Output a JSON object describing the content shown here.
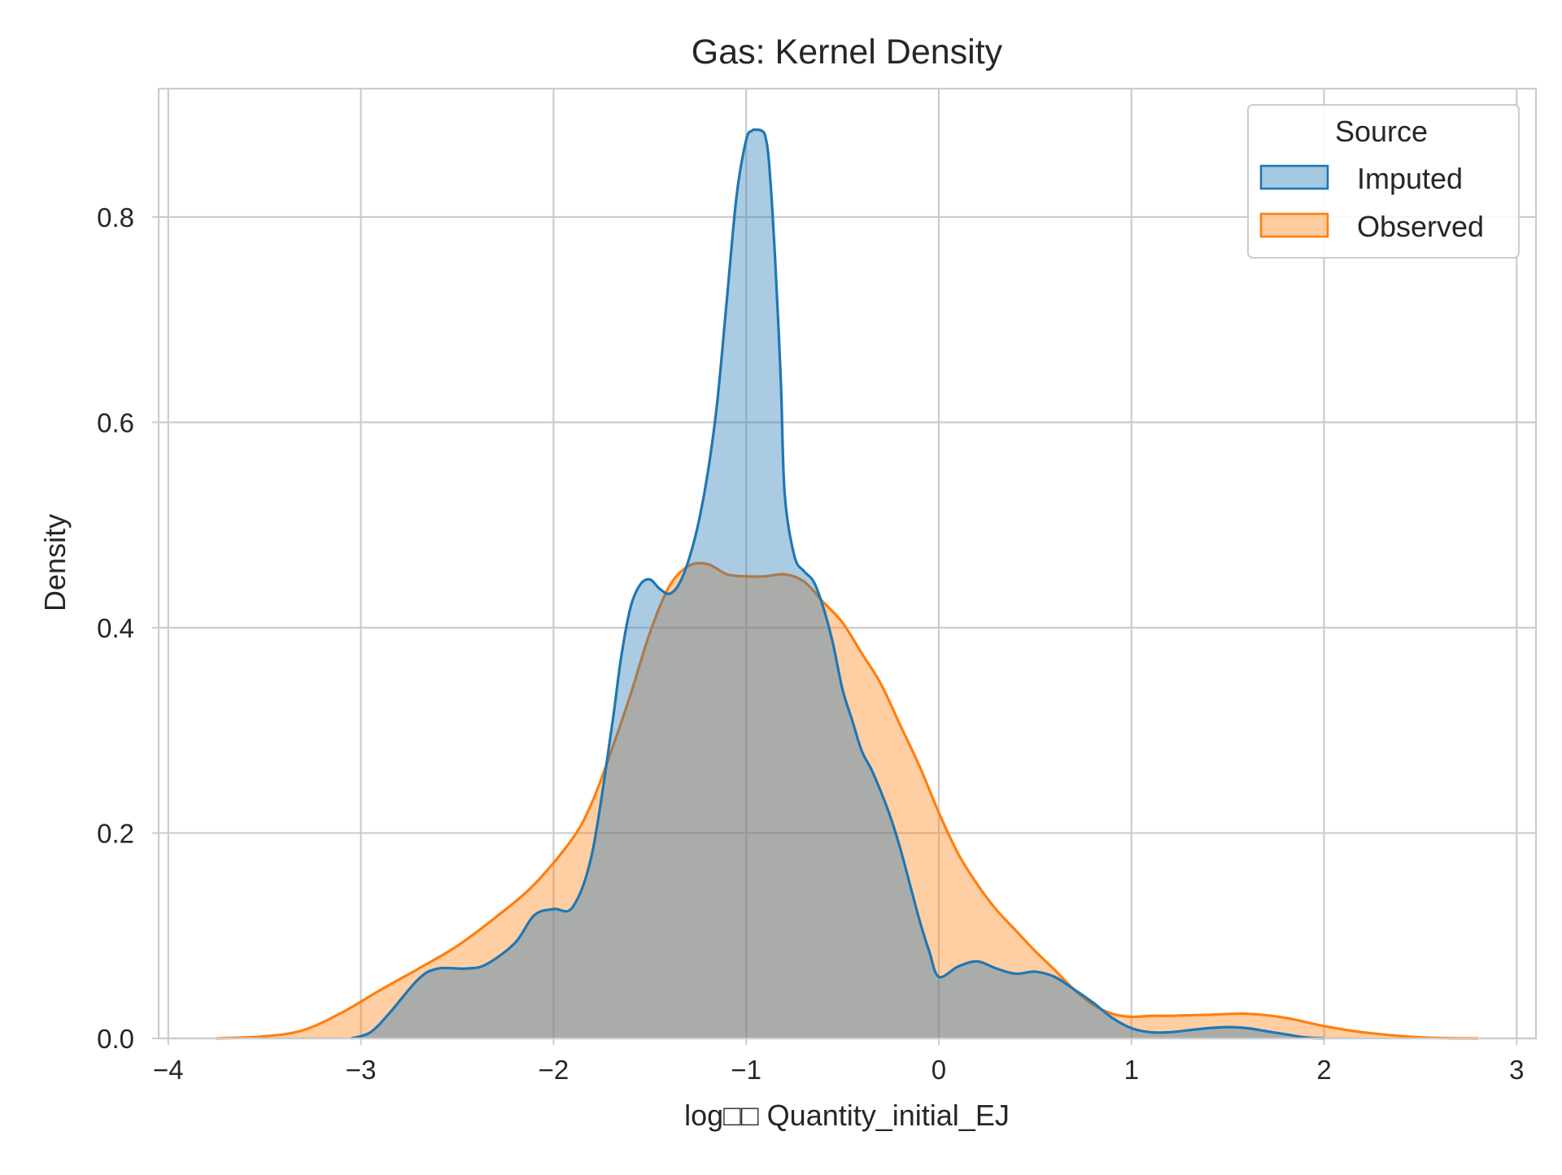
{
  "chart_data": {
    "type": "area",
    "title": "Gas: Kernel Density",
    "xlabel": "log□□ Quantity_initial_EJ",
    "ylabel": "Density",
    "xlim": [
      -4.05,
      3.1
    ],
    "ylim": [
      0,
      0.925
    ],
    "grid": true,
    "legend": {
      "title": "Source",
      "placement": "top-right"
    },
    "x_ticks": [
      -4,
      -3,
      -2,
      -1,
      0,
      1,
      2,
      3
    ],
    "x_tick_labels": [
      "−4",
      "−3",
      "−2",
      "−1",
      "0",
      "1",
      "2",
      "3"
    ],
    "y_ticks": [
      0.0,
      0.2,
      0.4,
      0.6,
      0.8
    ],
    "y_tick_labels": [
      "0.0",
      "0.2",
      "0.4",
      "0.6",
      "0.8"
    ],
    "series": [
      {
        "name": "Observed",
        "color": "#ff7f0e",
        "fill": "#ffc59a",
        "x": [
          -3.75,
          -3.5,
          -3.3,
          -3.1,
          -2.9,
          -2.7,
          -2.5,
          -2.3,
          -2.1,
          -1.9,
          -1.8,
          -1.7,
          -1.6,
          -1.5,
          -1.4,
          -1.3,
          -1.2,
          -1.1,
          -1.0,
          -0.9,
          -0.8,
          -0.7,
          -0.6,
          -0.5,
          -0.4,
          -0.3,
          -0.2,
          -0.1,
          0.0,
          0.1,
          0.2,
          0.3,
          0.4,
          0.5,
          0.6,
          0.7,
          0.8,
          0.9,
          1.0,
          1.1,
          1.2,
          1.4,
          1.6,
          1.8,
          2.0,
          2.2,
          2.5,
          2.8
        ],
        "y": [
          0.0,
          0.002,
          0.008,
          0.025,
          0.047,
          0.068,
          0.09,
          0.118,
          0.15,
          0.195,
          0.23,
          0.28,
          0.335,
          0.395,
          0.44,
          0.46,
          0.462,
          0.452,
          0.45,
          0.45,
          0.452,
          0.445,
          0.425,
          0.405,
          0.375,
          0.345,
          0.305,
          0.265,
          0.22,
          0.18,
          0.15,
          0.125,
          0.105,
          0.085,
          0.067,
          0.048,
          0.033,
          0.024,
          0.021,
          0.022,
          0.022,
          0.023,
          0.024,
          0.02,
          0.012,
          0.006,
          0.001,
          0.0
        ]
      },
      {
        "name": "Imputed",
        "color": "#1f77b4",
        "fill": "#a5c8e2",
        "x": [
          -3.05,
          -2.95,
          -2.85,
          -2.7,
          -2.6,
          -2.45,
          -2.35,
          -2.2,
          -2.1,
          -2.0,
          -1.9,
          -1.8,
          -1.7,
          -1.65,
          -1.6,
          -1.55,
          -1.5,
          -1.45,
          -1.4,
          -1.35,
          -1.3,
          -1.25,
          -1.2,
          -1.15,
          -1.1,
          -1.05,
          -1.0,
          -0.97,
          -0.95,
          -0.92,
          -0.9,
          -0.88,
          -0.85,
          -0.82,
          -0.8,
          -0.75,
          -0.7,
          -0.65,
          -0.6,
          -0.55,
          -0.5,
          -0.45,
          -0.4,
          -0.35,
          -0.3,
          -0.25,
          -0.2,
          -0.15,
          -0.1,
          -0.05,
          0.0,
          0.1,
          0.2,
          0.3,
          0.4,
          0.5,
          0.6,
          0.7,
          0.8,
          0.9,
          1.0,
          1.1,
          1.2,
          1.3,
          1.4,
          1.5,
          1.6,
          1.7,
          1.8,
          1.9,
          2.0
        ],
        "y": [
          0.0,
          0.006,
          0.025,
          0.058,
          0.068,
          0.068,
          0.072,
          0.093,
          0.12,
          0.126,
          0.128,
          0.18,
          0.3,
          0.37,
          0.42,
          0.442,
          0.447,
          0.438,
          0.433,
          0.442,
          0.465,
          0.5,
          0.55,
          0.62,
          0.72,
          0.82,
          0.875,
          0.884,
          0.885,
          0.884,
          0.878,
          0.85,
          0.76,
          0.64,
          0.53,
          0.47,
          0.455,
          0.445,
          0.42,
          0.385,
          0.34,
          0.31,
          0.28,
          0.262,
          0.24,
          0.215,
          0.185,
          0.15,
          0.115,
          0.085,
          0.06,
          0.07,
          0.075,
          0.068,
          0.063,
          0.065,
          0.06,
          0.048,
          0.035,
          0.02,
          0.01,
          0.006,
          0.006,
          0.008,
          0.01,
          0.011,
          0.01,
          0.007,
          0.004,
          0.001,
          0.0
        ]
      }
    ]
  }
}
